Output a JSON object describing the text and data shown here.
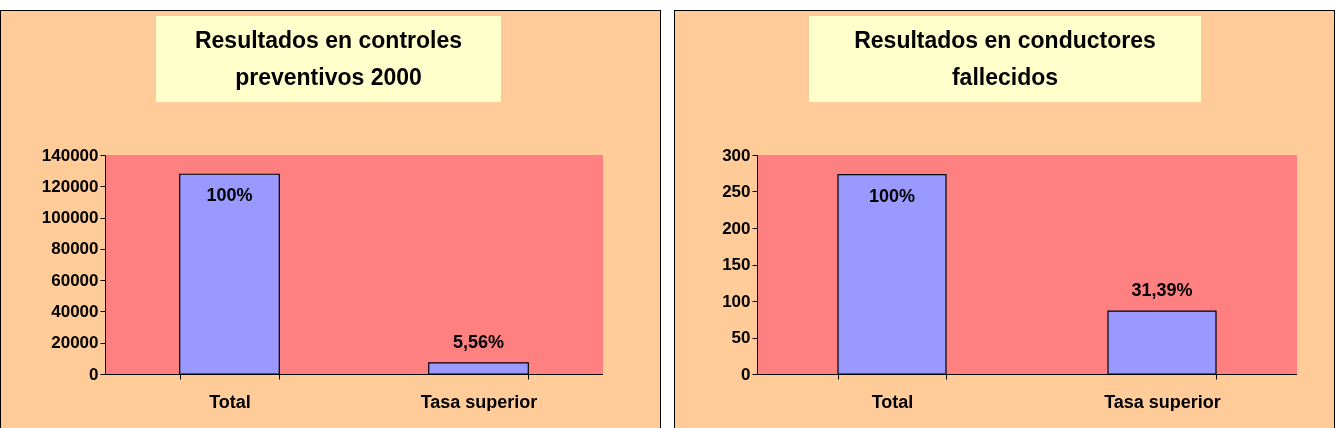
{
  "chart_data": [
    {
      "type": "bar",
      "title": "Resultados en controles preventivos 2000",
      "categories": [
        "Total",
        "Tasa superior"
      ],
      "values": [
        127700,
        7100
      ],
      "annotations": [
        {
          "text": "100%",
          "x": "Total",
          "y": 127700
        },
        {
          "text": "5,56%",
          "x": "Tasa superior",
          "y": 7100
        }
      ],
      "color": "#9999ff",
      "ylim": [
        0,
        140000
      ],
      "yticks": [
        0,
        20000,
        40000,
        60000,
        80000,
        100000,
        120000,
        140000
      ]
    },
    {
      "type": "bar",
      "title": "Resultados en conductores fallecidos",
      "categories": [
        "Total",
        "Tasa superior"
      ],
      "values": [
        273,
        86
      ],
      "annotations": [
        {
          "text": "100%",
          "x": "Total",
          "y": 273
        },
        {
          "text": "31,39%",
          "x": "Tasa superior",
          "y": 86
        }
      ],
      "color": "#9999ff",
      "ylim": [
        0,
        300
      ],
      "yticks": [
        0,
        50,
        100,
        150,
        200,
        250,
        300
      ]
    }
  ]
}
